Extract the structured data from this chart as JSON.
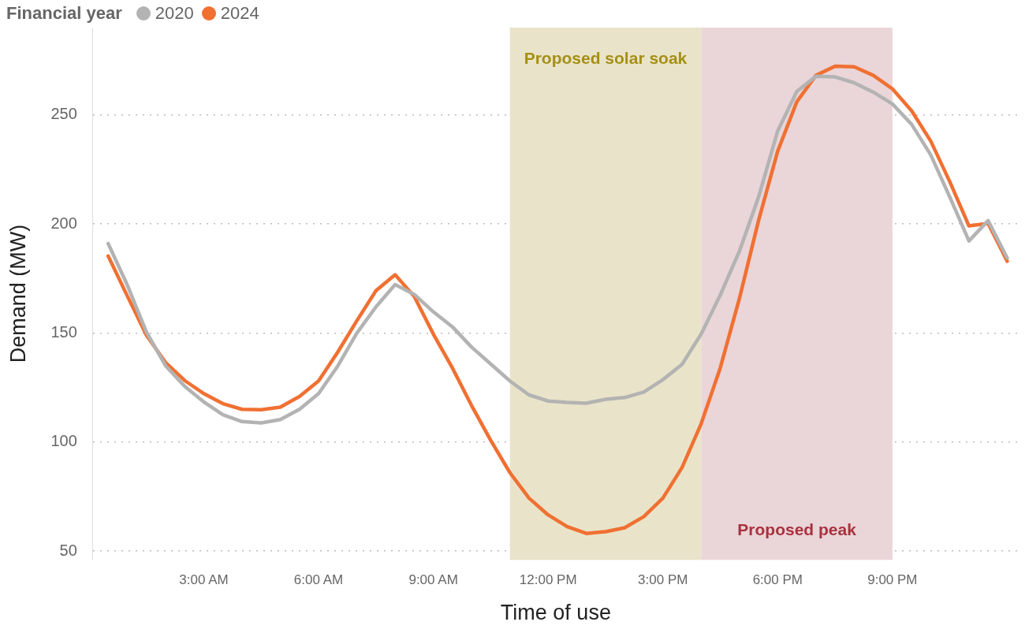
{
  "chart_data": {
    "type": "line",
    "xlabel": "Time of use",
    "ylabel": "Demand (MW)",
    "legend_title": "Financial year",
    "legend": "top left",
    "grid": "y",
    "marker": "none",
    "line_style": "solid",
    "x": [
      0.5,
      1,
      1.5,
      2,
      2.5,
      3,
      3.5,
      4,
      4.5,
      5,
      5.5,
      6,
      6.5,
      7,
      7.5,
      8,
      8.5,
      9,
      9.5,
      10,
      10.5,
      11,
      11.5,
      12,
      12.5,
      13,
      13.5,
      14,
      14.5,
      15,
      15.5,
      16,
      16.5,
      17,
      17.5,
      18,
      18.5,
      19,
      19.5,
      20,
      20.5,
      21,
      21.5,
      22,
      22.5,
      23,
      23.5,
      24
    ],
    "xlim": [
      0.1,
      24.3
    ],
    "xticks": [
      {
        "value": 3,
        "label": "3:00 AM"
      },
      {
        "value": 6,
        "label": "6:00 AM"
      },
      {
        "value": 9,
        "label": "9:00 AM"
      },
      {
        "value": 12,
        "label": "12:00 PM"
      },
      {
        "value": 15,
        "label": "3:00 PM"
      },
      {
        "value": 18,
        "label": "6:00 PM"
      },
      {
        "value": 21,
        "label": "9:00 PM"
      }
    ],
    "ylim": [
      46,
      290
    ],
    "yticks": [
      50,
      100,
      150,
      200,
      250
    ],
    "bands": [
      {
        "axis": "x",
        "from": 11,
        "to": 16,
        "label": "Proposed solar soak",
        "color": "#e9e4c9"
      },
      {
        "axis": "x",
        "from": 16,
        "to": 21,
        "label": "Proposed peak",
        "color": "#ead5d8"
      }
    ],
    "series": [
      {
        "name": "2020",
        "color": "#b3b3b3",
        "values": [
          191,
          172,
          150.5,
          135,
          125.6,
          118.4,
          112.5,
          109.4,
          108.8,
          110.3,
          115,
          122.2,
          134.8,
          149.9,
          162,
          172.2,
          167.7,
          159.7,
          152.8,
          143.5,
          135.8,
          128,
          121.6,
          118.8,
          118.2,
          117.8,
          119.6,
          120.4,
          122.9,
          128.6,
          135.6,
          149.5,
          167.4,
          187.5,
          212.3,
          242.6,
          260.7,
          267.7,
          267.4,
          264.7,
          260.4,
          255,
          245.7,
          231.7,
          212.3,
          192.2,
          201.5,
          184.4
        ]
      },
      {
        "name": "2024",
        "color": "#f07032",
        "values": [
          185.3,
          167,
          149,
          136.5,
          128.2,
          122.2,
          117.6,
          115,
          114.8,
          116,
          120.9,
          128,
          141.2,
          155.6,
          169.4,
          176.7,
          166.8,
          149.5,
          133.9,
          116.7,
          100.8,
          86,
          74.3,
          66.6,
          61.2,
          58.1,
          58.9,
          60.7,
          65.8,
          74.3,
          88.3,
          108.4,
          134,
          165.8,
          201.5,
          233.3,
          256,
          268.1,
          272.3,
          272,
          268.1,
          261.9,
          251.9,
          238,
          219.3,
          199.1,
          200.2,
          182.9
        ]
      }
    ]
  }
}
